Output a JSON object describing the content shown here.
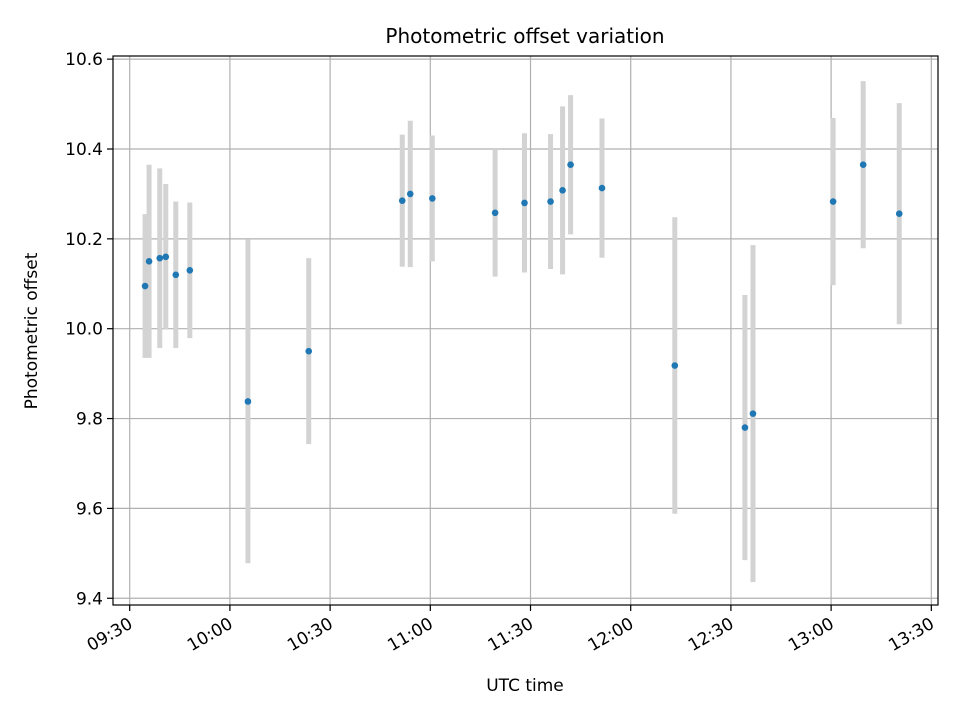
{
  "chart_data": {
    "type": "scatter",
    "title": "Photometric offset variation",
    "xlabel": "UTC time",
    "ylabel": "Photometric offset",
    "xlim": [
      "09:25",
      "13:32"
    ],
    "ylim": [
      9.385,
      10.607
    ],
    "grid": true,
    "x_ticks": [
      "09:30",
      "10:00",
      "10:30",
      "11:00",
      "11:30",
      "12:00",
      "12:30",
      "13:00",
      "13:30"
    ],
    "y_ticks": [
      "9.4",
      "9.6",
      "9.8",
      "10.0",
      "10.2",
      "10.4",
      "10.6"
    ],
    "x_tick_rotation": 30,
    "colors": {
      "points": "#1f77b4",
      "errorbars": "#d3d3d3",
      "grid": "#b0b0b0"
    },
    "points": [
      {
        "time": "09:34:36",
        "y": 10.095,
        "yerr": 0.16
      },
      {
        "time": "09:35:48",
        "y": 10.15,
        "yerr": 0.215
      },
      {
        "time": "09:39:00",
        "y": 10.157,
        "yerr": 0.2
      },
      {
        "time": "09:40:48",
        "y": 10.16,
        "yerr": 0.162
      },
      {
        "time": "09:43:48",
        "y": 10.12,
        "yerr": 0.163
      },
      {
        "time": "09:48:00",
        "y": 10.13,
        "yerr": 0.151
      },
      {
        "time": "10:05:24",
        "y": 9.838,
        "yerr": 0.36
      },
      {
        "time": "10:23:36",
        "y": 9.95,
        "yerr": 0.207
      },
      {
        "time": "10:51:36",
        "y": 10.285,
        "yerr": 0.147
      },
      {
        "time": "10:54:00",
        "y": 10.3,
        "yerr": 0.163
      },
      {
        "time": "11:00:36",
        "y": 10.29,
        "yerr": 0.14
      },
      {
        "time": "11:19:24",
        "y": 10.258,
        "yerr": 0.142
      },
      {
        "time": "11:28:12",
        "y": 10.28,
        "yerr": 0.155
      },
      {
        "time": "11:36:00",
        "y": 10.283,
        "yerr": 0.15
      },
      {
        "time": "11:39:36",
        "y": 10.308,
        "yerr": 0.187
      },
      {
        "time": "11:42:00",
        "y": 10.365,
        "yerr": 0.155
      },
      {
        "time": "11:51:24",
        "y": 10.313,
        "yerr": 0.155
      },
      {
        "time": "12:13:12",
        "y": 9.918,
        "yerr": 0.33
      },
      {
        "time": "12:34:12",
        "y": 9.78,
        "yerr": 0.295
      },
      {
        "time": "12:36:36",
        "y": 9.811,
        "yerr": 0.375
      },
      {
        "time": "13:00:36",
        "y": 10.283,
        "yerr": 0.186
      },
      {
        "time": "13:09:36",
        "y": 10.365,
        "yerr": 0.186
      },
      {
        "time": "13:20:24",
        "y": 10.256,
        "yerr": 0.246
      }
    ]
  }
}
